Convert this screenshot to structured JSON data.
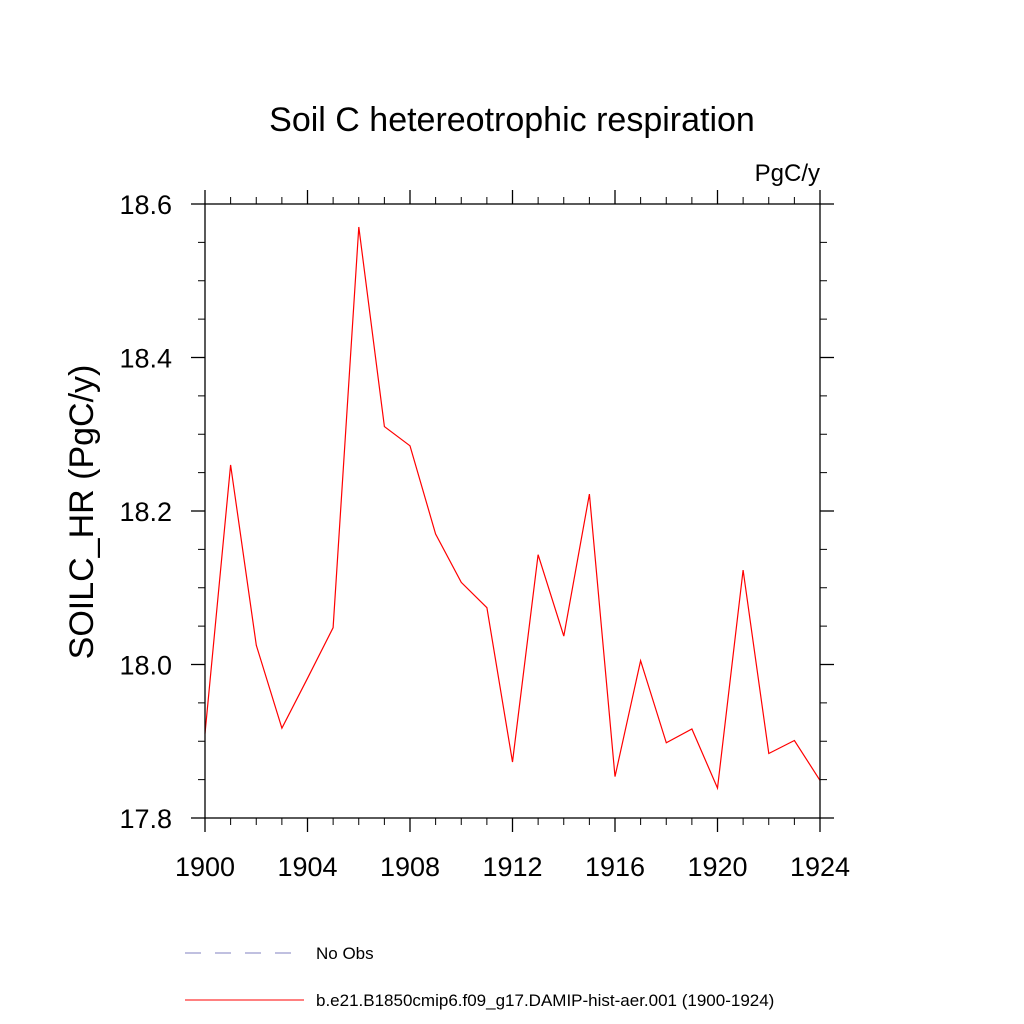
{
  "chart_data": {
    "type": "line",
    "title": "Soil C hetereotrophic respiration",
    "units": "PgC/y",
    "ylabel": "SOILC_HR  (PgC/y)",
    "xlabel": "",
    "xlim": [
      1900,
      1924
    ],
    "ylim": [
      17.8,
      18.6
    ],
    "x_ticks": [
      1900,
      1904,
      1908,
      1912,
      1916,
      1920,
      1924
    ],
    "x_tick_labels": [
      "1900",
      "1904",
      "1908",
      "1912",
      "1916",
      "1920",
      "1924"
    ],
    "y_ticks": [
      17.8,
      18.0,
      18.2,
      18.4,
      18.6
    ],
    "y_tick_labels": [
      "17.8",
      "18.0",
      "18.2",
      "18.4",
      "18.6"
    ],
    "grid": false,
    "legend_position": "bottom",
    "series": [
      {
        "name": "b.e21.B1850cmip6.f09_g17.DAMIP-hist-aer.001 (1900-1924)",
        "color": "#ff0000",
        "line_style": "solid",
        "x": [
          1900,
          1901,
          1902,
          1903,
          1904,
          1905,
          1906,
          1907,
          1908,
          1909,
          1910,
          1911,
          1912,
          1913,
          1914,
          1915,
          1916,
          1917,
          1918,
          1919,
          1920,
          1921,
          1922,
          1923,
          1924
        ],
        "y": [
          17.91,
          18.26,
          18.025,
          17.917,
          17.982,
          18.048,
          18.57,
          18.31,
          18.285,
          18.17,
          18.107,
          18.074,
          17.873,
          18.143,
          18.037,
          18.222,
          17.854,
          18.005,
          17.898,
          17.916,
          17.839,
          18.123,
          17.884,
          17.901,
          17.849
        ]
      }
    ],
    "legend": [
      {
        "label": "No Obs",
        "color": "#8080c0",
        "line_style": "dashed"
      },
      {
        "label": "b.e21.B1850cmip6.f09_g17.DAMIP-hist-aer.001 (1900-1924)",
        "color": "#ff0000",
        "line_style": "solid"
      }
    ]
  }
}
